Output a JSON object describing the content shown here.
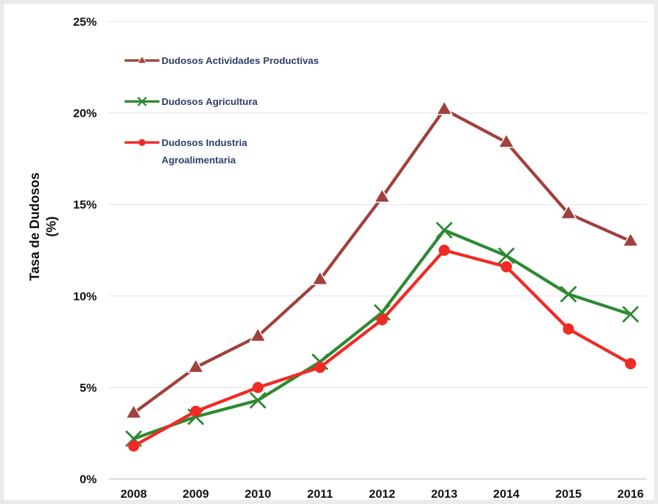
{
  "chart_data": {
    "type": "line",
    "title": "",
    "ylabel": "Tasa de Dudosos (%)",
    "ylabel_lines": [
      "Tasa de Dudosos",
      "(%)"
    ],
    "xlabel": "",
    "x": [
      "2008",
      "2009",
      "2010",
      "2011",
      "2012",
      "2013",
      "2014",
      "2015",
      "2016"
    ],
    "ylim": [
      0,
      25
    ],
    "yticks": [
      0,
      5,
      10,
      15,
      20,
      25
    ],
    "ytick_labels": [
      "0%",
      "5%",
      "10%",
      "15%",
      "20%",
      "25%"
    ],
    "grid": true,
    "legend_position": "top-left",
    "series": [
      {
        "name": "Dudosos Actividades Productivas",
        "legend_lines": [
          "Dudosos Actividades Productivas"
        ],
        "marker": "triangle",
        "color": "#a0413d",
        "values": [
          3.6,
          6.1,
          7.8,
          10.9,
          15.4,
          20.2,
          18.4,
          14.5,
          13.0
        ]
      },
      {
        "name": "Dudosos Agricultura",
        "legend_lines": [
          "Dudosos Agricultura"
        ],
        "marker": "x",
        "color": "#2e8a32",
        "values": [
          2.2,
          3.4,
          4.3,
          6.4,
          9.1,
          13.6,
          12.2,
          10.1,
          9.0
        ]
      },
      {
        "name": "Dudosos Industria Agroalimentaria",
        "legend_lines": [
          "Dudosos Industria",
          "Agroalimentaria"
        ],
        "marker": "circle",
        "color": "#f02a25",
        "values": [
          1.8,
          3.7,
          5.0,
          6.1,
          8.7,
          12.5,
          11.6,
          8.2,
          6.3
        ]
      }
    ]
  }
}
